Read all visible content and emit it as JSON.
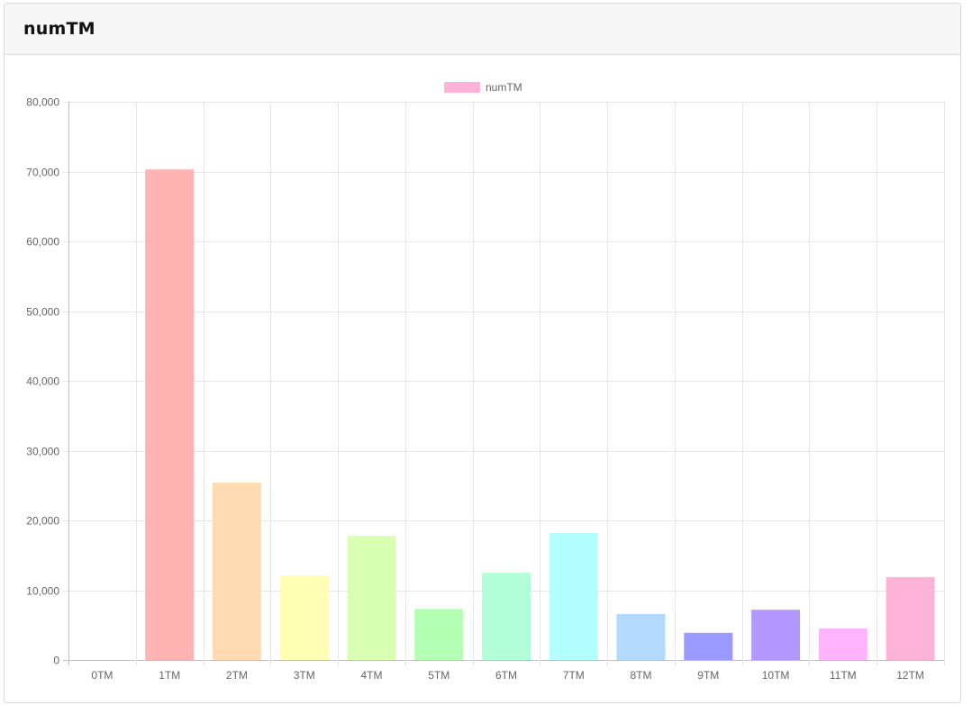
{
  "card": {
    "title": "numTM"
  },
  "chart_data": {
    "type": "bar",
    "categories": [
      "0TM",
      "1TM",
      "2TM",
      "3TM",
      "4TM",
      "5TM",
      "6TM",
      "7TM",
      "8TM",
      "9TM",
      "10TM",
      "11TM",
      "12TM"
    ],
    "series": [
      {
        "name": "numTM",
        "values": [
          0,
          70300,
          25400,
          12100,
          17800,
          7300,
          12500,
          18200,
          6600,
          3900,
          7200,
          4500,
          11900
        ],
        "colors": [
          "#ffb3ba",
          "#ffb3b3",
          "#ffdab3",
          "#ffffb3",
          "#d9ffb3",
          "#b3ffb3",
          "#b3ffda",
          "#b3ffff",
          "#b3d9ff",
          "#9999ff",
          "#b399ff",
          "#ffb3ff",
          "#ffb3d9"
        ],
        "legend_color": "#ffb3d9"
      }
    ],
    "ylim": [
      0,
      80000
    ],
    "yticks": [
      0,
      10000,
      20000,
      30000,
      40000,
      50000,
      60000,
      70000,
      80000
    ],
    "ytick_labels": [
      "0",
      "10,000",
      "20,000",
      "30,000",
      "40,000",
      "50,000",
      "60,000",
      "70,000",
      "80,000"
    ],
    "legend_position": "top-center",
    "grid": true,
    "title": "",
    "xlabel": "",
    "ylabel": ""
  }
}
